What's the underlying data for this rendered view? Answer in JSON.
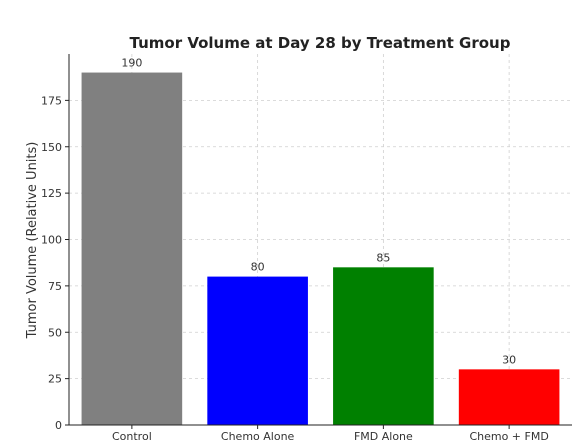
{
  "chart_data": {
    "type": "bar",
    "title": "Tumor Volume at Day 28 by Treatment Group",
    "xlabel": "",
    "ylabel": "Tumor Volume (Relative Units)",
    "categories": [
      "Control",
      "Chemo Alone",
      "FMD Alone",
      "Chemo + FMD"
    ],
    "values": [
      190,
      80,
      85,
      30
    ],
    "colors": [
      "#808080",
      "#0000ff",
      "#008000",
      "#ff0000"
    ],
    "ylim": [
      0,
      200
    ],
    "yticks": [
      0,
      25,
      50,
      75,
      100,
      125,
      150,
      175
    ],
    "data_labels": [
      "190",
      "80",
      "85",
      "30"
    ],
    "grid": true,
    "legend": "none"
  }
}
